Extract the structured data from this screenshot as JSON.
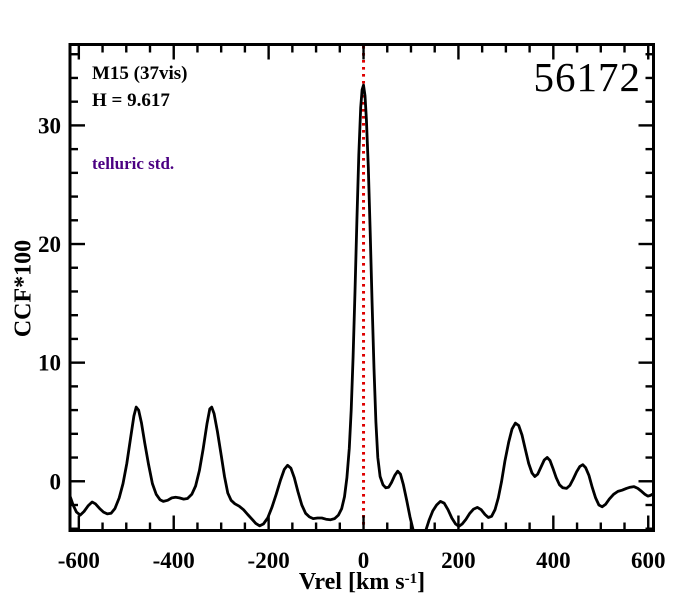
{
  "figure": {
    "background": "#ffffff",
    "annotations": {
      "cluster": "M15 (37vis)",
      "hmag": "H = 9.617",
      "telluric": "telluric std.",
      "telluric_color": "#4b0082",
      "mjd": "56172"
    },
    "axis_titles": {
      "y": "CCF*100",
      "x_main": "Vrel [km s",
      "x_sup": "-1",
      "x_close": "]"
    }
  },
  "chart_data": {
    "type": "line",
    "title": "",
    "xlabel": "Vrel [km s^-1]",
    "ylabel": "CCF*100",
    "xlim": [
      -618.6,
      611.1
    ],
    "ylim": [
      -4.15,
      36.82
    ],
    "x_major_ticks": [
      -600,
      -400,
      -200,
      0,
      200,
      400,
      600
    ],
    "x_minor_step": 50,
    "y_major_ticks": [
      0,
      10,
      20,
      30
    ],
    "y_minor_step": 2,
    "grid": false,
    "legend": "none",
    "frame_color": "#000000",
    "vline": {
      "x": 0,
      "color": "#dd0000",
      "style": "dotted"
    },
    "series": [
      {
        "name": "CCF",
        "color": "#000000",
        "points": [
          [
            -619,
            -1.2
          ],
          [
            -612,
            -2.0
          ],
          [
            -605,
            -2.6
          ],
          [
            -597,
            -2.85
          ],
          [
            -589,
            -2.55
          ],
          [
            -580,
            -2.05
          ],
          [
            -572,
            -1.75
          ],
          [
            -565,
            -1.9
          ],
          [
            -556,
            -2.3
          ],
          [
            -548,
            -2.6
          ],
          [
            -540,
            -2.75
          ],
          [
            -532,
            -2.7
          ],
          [
            -524,
            -2.3
          ],
          [
            -515,
            -1.4
          ],
          [
            -507,
            -0.2
          ],
          [
            -499,
            1.5
          ],
          [
            -491,
            3.6
          ],
          [
            -484,
            5.5
          ],
          [
            -479,
            6.25
          ],
          [
            -474,
            6.0
          ],
          [
            -468,
            4.9
          ],
          [
            -461,
            3.2
          ],
          [
            -453,
            1.4
          ],
          [
            -445,
            -0.2
          ],
          [
            -437,
            -1.1
          ],
          [
            -429,
            -1.55
          ],
          [
            -422,
            -1.7
          ],
          [
            -413,
            -1.6
          ],
          [
            -404,
            -1.4
          ],
          [
            -396,
            -1.35
          ],
          [
            -388,
            -1.4
          ],
          [
            -379,
            -1.5
          ],
          [
            -371,
            -1.45
          ],
          [
            -362,
            -1.1
          ],
          [
            -354,
            -0.4
          ],
          [
            -346,
            0.9
          ],
          [
            -338,
            2.7
          ],
          [
            -330,
            4.8
          ],
          [
            -324,
            6.1
          ],
          [
            -320,
            6.25
          ],
          [
            -315,
            5.7
          ],
          [
            -308,
            4.2
          ],
          [
            -300,
            2.2
          ],
          [
            -293,
            0.4
          ],
          [
            -286,
            -1.0
          ],
          [
            -279,
            -1.6
          ],
          [
            -271,
            -1.9
          ],
          [
            -262,
            -2.1
          ],
          [
            -253,
            -2.4
          ],
          [
            -244,
            -2.8
          ],
          [
            -235,
            -3.2
          ],
          [
            -227,
            -3.55
          ],
          [
            -219,
            -3.75
          ],
          [
            -211,
            -3.6
          ],
          [
            -202,
            -3.1
          ],
          [
            -193,
            -2.2
          ],
          [
            -184,
            -1.1
          ],
          [
            -175,
            0.1
          ],
          [
            -167,
            1.0
          ],
          [
            -160,
            1.35
          ],
          [
            -153,
            1.1
          ],
          [
            -146,
            0.3
          ],
          [
            -138,
            -0.9
          ],
          [
            -130,
            -2.0
          ],
          [
            -122,
            -2.7
          ],
          [
            -114,
            -3.0
          ],
          [
            -106,
            -3.15
          ],
          [
            -97,
            -3.1
          ],
          [
            -88,
            -3.1
          ],
          [
            -79,
            -3.2
          ],
          [
            -70,
            -3.25
          ],
          [
            -61,
            -3.15
          ],
          [
            -53,
            -2.85
          ],
          [
            -46,
            -2.3
          ],
          [
            -40,
            -1.3
          ],
          [
            -35,
            0.3
          ],
          [
            -30,
            2.8
          ],
          [
            -26,
            6.0
          ],
          [
            -22,
            10.5
          ],
          [
            -18,
            16.0
          ],
          [
            -14,
            22.0
          ],
          [
            -10,
            27.5
          ],
          [
            -6,
            31.5
          ],
          [
            -3,
            33.0
          ],
          [
            0,
            33.4
          ],
          [
            3,
            32.5
          ],
          [
            6,
            30.5
          ],
          [
            10,
            26.5
          ],
          [
            14,
            21.0
          ],
          [
            18,
            15.0
          ],
          [
            22,
            9.5
          ],
          [
            26,
            5.0
          ],
          [
            30,
            2.0
          ],
          [
            35,
            0.4
          ],
          [
            41,
            -0.3
          ],
          [
            47,
            -0.55
          ],
          [
            53,
            -0.5
          ],
          [
            59,
            -0.1
          ],
          [
            66,
            0.5
          ],
          [
            72,
            0.85
          ],
          [
            78,
            0.6
          ],
          [
            84,
            -0.3
          ],
          [
            91,
            -1.6
          ],
          [
            98,
            -3.0
          ],
          [
            105,
            -4.2
          ],
          [
            111,
            -5.0
          ],
          [
            118,
            -5.5
          ],
          [
            124,
            -5.2
          ],
          [
            130,
            -4.3
          ],
          [
            138,
            -3.3
          ],
          [
            146,
            -2.5
          ],
          [
            154,
            -2.0
          ],
          [
            162,
            -1.7
          ],
          [
            170,
            -1.85
          ],
          [
            178,
            -2.4
          ],
          [
            186,
            -3.1
          ],
          [
            194,
            -3.6
          ],
          [
            201,
            -3.8
          ],
          [
            208,
            -3.6
          ],
          [
            216,
            -3.2
          ],
          [
            224,
            -2.7
          ],
          [
            232,
            -2.35
          ],
          [
            240,
            -2.2
          ],
          [
            248,
            -2.4
          ],
          [
            256,
            -2.8
          ],
          [
            263,
            -3.05
          ],
          [
            270,
            -2.95
          ],
          [
            277,
            -2.4
          ],
          [
            284,
            -1.4
          ],
          [
            291,
            0.0
          ],
          [
            298,
            1.7
          ],
          [
            306,
            3.3
          ],
          [
            313,
            4.4
          ],
          [
            320,
            4.9
          ],
          [
            327,
            4.7
          ],
          [
            334,
            3.9
          ],
          [
            341,
            2.7
          ],
          [
            348,
            1.5
          ],
          [
            355,
            0.7
          ],
          [
            361,
            0.4
          ],
          [
            367,
            0.6
          ],
          [
            374,
            1.2
          ],
          [
            381,
            1.8
          ],
          [
            387,
            2.0
          ],
          [
            393,
            1.75
          ],
          [
            399,
            1.1
          ],
          [
            406,
            0.3
          ],
          [
            413,
            -0.3
          ],
          [
            420,
            -0.55
          ],
          [
            428,
            -0.6
          ],
          [
            435,
            -0.35
          ],
          [
            442,
            0.2
          ],
          [
            449,
            0.8
          ],
          [
            456,
            1.25
          ],
          [
            462,
            1.4
          ],
          [
            468,
            1.15
          ],
          [
            475,
            0.5
          ],
          [
            482,
            -0.5
          ],
          [
            489,
            -1.4
          ],
          [
            496,
            -2.0
          ],
          [
            503,
            -2.15
          ],
          [
            510,
            -1.95
          ],
          [
            518,
            -1.5
          ],
          [
            527,
            -1.1
          ],
          [
            536,
            -0.85
          ],
          [
            545,
            -0.75
          ],
          [
            554,
            -0.6
          ],
          [
            562,
            -0.5
          ],
          [
            570,
            -0.45
          ],
          [
            578,
            -0.6
          ],
          [
            586,
            -0.85
          ],
          [
            593,
            -1.1
          ],
          [
            599,
            -1.25
          ],
          [
            604,
            -1.2
          ],
          [
            609,
            -1.1
          ],
          [
            613,
            -1.0
          ]
        ]
      }
    ]
  }
}
